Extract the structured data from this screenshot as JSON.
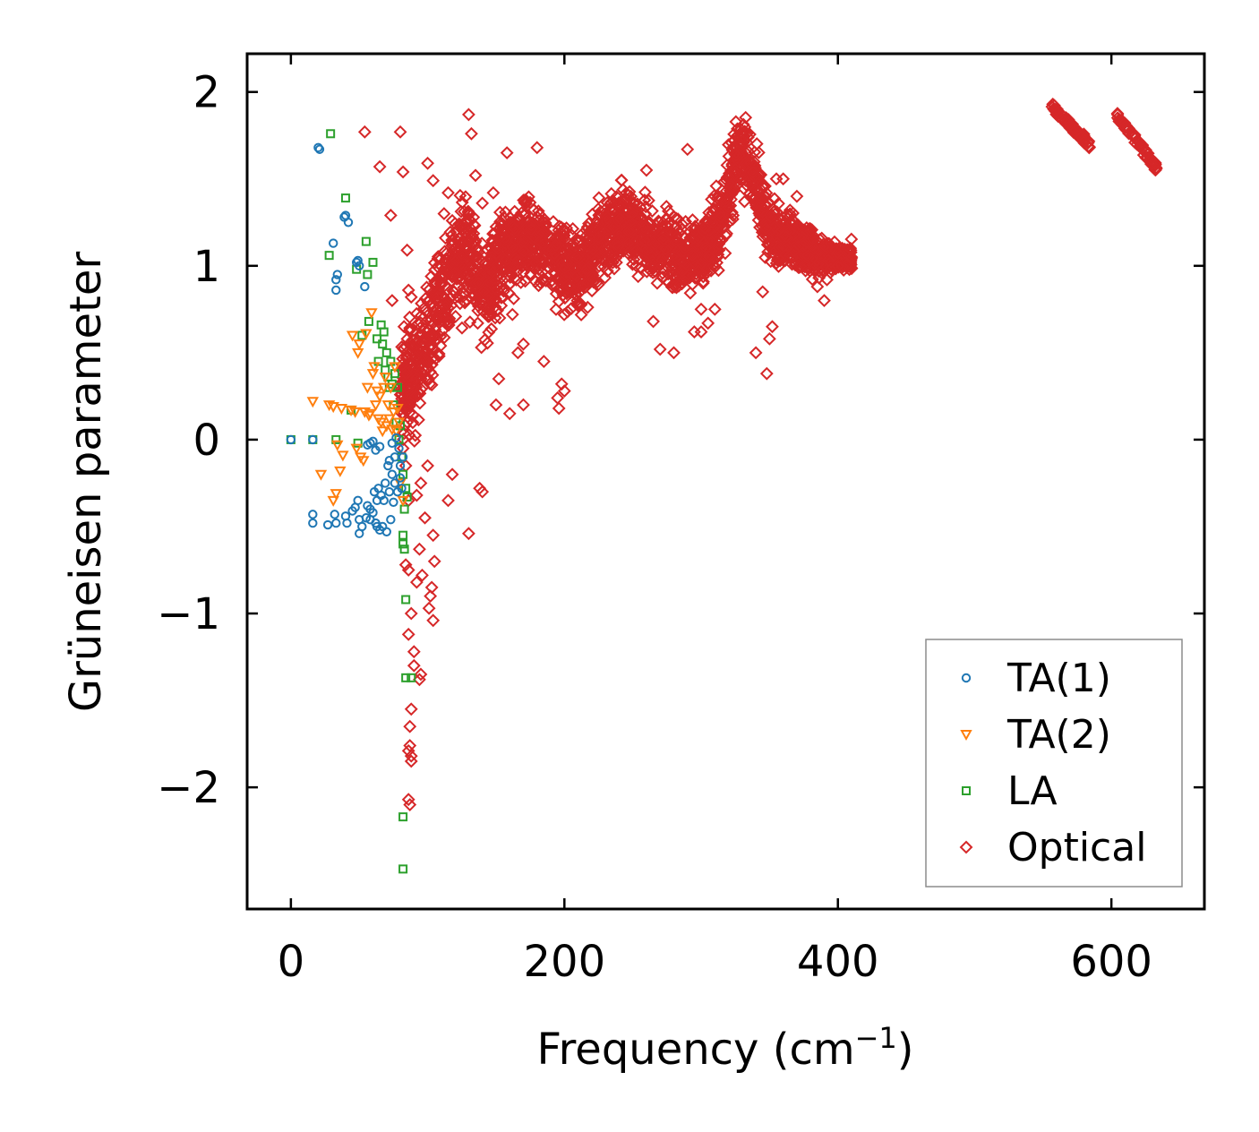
{
  "chart_data": {
    "type": "scatter",
    "title": "",
    "xlabel": "Frequency (cm",
    "xlabel_sup": "−1",
    "xlabel_tail": ")",
    "ylabel": "Grüneisen parameter",
    "xlim": [
      -32,
      668
    ],
    "ylim": [
      -2.7,
      2.22
    ],
    "x_ticks": [
      0,
      200,
      400,
      600
    ],
    "x_tick_labels": [
      "0",
      "200",
      "400",
      "600"
    ],
    "y_ticks": [
      -2,
      -1,
      0,
      1,
      2
    ],
    "y_tick_labels": [
      "−2",
      "−1",
      "0",
      "1",
      "2"
    ],
    "grid": false,
    "legend_position": "bottom-right",
    "series": [
      {
        "name": "TA(1)",
        "color": "#1f77b4",
        "marker": "circle",
        "points": [
          [
            0,
            0
          ],
          [
            16,
            0
          ],
          [
            16,
            -0.43
          ],
          [
            16,
            -0.48
          ],
          [
            20,
            1.68
          ],
          [
            21,
            1.67
          ],
          [
            27,
            -0.49
          ],
          [
            31,
            1.13
          ],
          [
            32,
            -0.43
          ],
          [
            33,
            0.86
          ],
          [
            33,
            0.92
          ],
          [
            34,
            0.95
          ],
          [
            33,
            -0.48
          ],
          [
            39,
            1.28
          ],
          [
            40,
            1.29
          ],
          [
            42,
            1.25
          ],
          [
            40,
            -0.44
          ],
          [
            41,
            -0.48
          ],
          [
            45,
            -0.41
          ],
          [
            47,
            -0.39
          ],
          [
            48,
            1.02
          ],
          [
            49,
            1.03
          ],
          [
            50,
            1.0
          ],
          [
            49,
            -0.35
          ],
          [
            50,
            -0.46
          ],
          [
            50,
            -0.54
          ],
          [
            52,
            -0.5
          ],
          [
            54,
            0.88
          ],
          [
            55,
            -0.45
          ],
          [
            56,
            -0.38
          ],
          [
            58,
            -0.4
          ],
          [
            58,
            -0.46
          ],
          [
            60,
            -0.42
          ],
          [
            61,
            -0.3
          ],
          [
            62,
            -0.48
          ],
          [
            63,
            -0.35
          ],
          [
            63,
            -0.5
          ],
          [
            64,
            -0.28
          ],
          [
            65,
            -0.52
          ],
          [
            66,
            -0.32
          ],
          [
            67,
            -0.5
          ],
          [
            68,
            -0.35
          ],
          [
            69,
            -0.25
          ],
          [
            70,
            -0.53
          ],
          [
            71,
            -0.15
          ],
          [
            72,
            -0.3
          ],
          [
            72,
            -0.12
          ],
          [
            73,
            -0.46
          ],
          [
            74,
            -0.2
          ],
          [
            74,
            -0.02
          ],
          [
            75,
            -0.36
          ],
          [
            76,
            -0.1
          ],
          [
            76,
            -0.25
          ],
          [
            77,
            0.01
          ],
          [
            78,
            -0.3
          ],
          [
            79,
            -0.05
          ],
          [
            80,
            -0.22
          ],
          [
            80,
            -0.15
          ],
          [
            81,
            -0.28
          ],
          [
            82,
            -0.1
          ],
          [
            56,
            -0.03
          ],
          [
            58,
            -0.02
          ],
          [
            60,
            -0.01
          ],
          [
            62,
            -0.06
          ],
          [
            65,
            -0.04
          ]
        ]
      },
      {
        "name": "TA(2)",
        "color": "#ff7f0e",
        "marker": "triangle",
        "points": [
          [
            16,
            0.22
          ],
          [
            22,
            -0.2
          ],
          [
            28,
            0.2
          ],
          [
            31,
            0.19
          ],
          [
            31,
            -0.35
          ],
          [
            33,
            -0.31
          ],
          [
            34,
            -0.03
          ],
          [
            36,
            -0.18
          ],
          [
            37,
            0.18
          ],
          [
            38,
            -0.09
          ],
          [
            44,
            0.17
          ],
          [
            45,
            0.6
          ],
          [
            47,
            0.16
          ],
          [
            48,
            -0.05
          ],
          [
            49,
            0.5
          ],
          [
            50,
            0.55
          ],
          [
            51,
            -0.1
          ],
          [
            53,
            -0.12
          ],
          [
            54,
            0.16
          ],
          [
            55,
            0.61
          ],
          [
            56,
            0.3
          ],
          [
            57,
            0.14
          ],
          [
            58,
            0.15
          ],
          [
            59,
            0.73
          ],
          [
            60,
            0.38
          ],
          [
            61,
            0.42
          ],
          [
            62,
            0.2
          ],
          [
            63,
            0.28
          ],
          [
            64,
            0.12
          ],
          [
            65,
            0.25
          ],
          [
            66,
            0.1
          ],
          [
            67,
            0.05
          ],
          [
            68,
            0.3
          ],
          [
            69,
            0.36
          ],
          [
            70,
            0.08
          ],
          [
            71,
            0.2
          ],
          [
            72,
            0.12
          ],
          [
            73,
            0.3
          ],
          [
            74,
            0.06
          ],
          [
            75,
            0.16
          ],
          [
            76,
            0.42
          ],
          [
            77,
            0.05
          ],
          [
            78,
            0.18
          ],
          [
            79,
            0.1
          ],
          [
            80,
            -0.25
          ],
          [
            82,
            -0.35
          ]
        ]
      },
      {
        "name": "LA",
        "color": "#2ca02c",
        "marker": "square",
        "points": [
          [
            0,
            0
          ],
          [
            16,
            0
          ],
          [
            29,
            1.76
          ],
          [
            28,
            1.06
          ],
          [
            33,
            0
          ],
          [
            40,
            1.39
          ],
          [
            44,
            0.17
          ],
          [
            48,
            0.98
          ],
          [
            49,
            -0.02
          ],
          [
            52,
            0.6
          ],
          [
            55,
            1.14
          ],
          [
            56,
            0.95
          ],
          [
            57,
            0.68
          ],
          [
            60,
            1.02
          ],
          [
            63,
            0.58
          ],
          [
            64,
            0.45
          ],
          [
            66,
            0.66
          ],
          [
            67,
            0.55
          ],
          [
            68,
            0.62
          ],
          [
            69,
            0.4
          ],
          [
            70,
            0.5
          ],
          [
            71,
            0.36
          ],
          [
            72,
            0.3
          ],
          [
            73,
            0.45
          ],
          [
            74,
            0.32
          ],
          [
            75,
            0.2
          ],
          [
            76,
            0.38
          ],
          [
            77,
            0.1
          ],
          [
            78,
            0.3
          ],
          [
            79,
            0.0
          ],
          [
            80,
            0.08
          ],
          [
            81,
            -0.1
          ],
          [
            82,
            -0.2
          ],
          [
            83,
            -0.4
          ],
          [
            84,
            -0.28
          ],
          [
            85,
            -0.33
          ],
          [
            82,
            -0.55
          ],
          [
            82,
            -0.6
          ],
          [
            83,
            -0.63
          ],
          [
            84,
            -0.92
          ],
          [
            84,
            -1.37
          ],
          [
            88,
            -1.37
          ],
          [
            82,
            -2.17
          ],
          [
            82,
            -2.47
          ]
        ]
      },
      {
        "name": "Optical",
        "color": "#d62728",
        "marker": "diamond",
        "points": []
      }
    ],
    "optical_band_center": [
      [
        80,
        0.3
      ],
      [
        88,
        0.35
      ],
      [
        95,
        0.45
      ],
      [
        102,
        0.65
      ],
      [
        110,
        0.8
      ],
      [
        118,
        0.95
      ],
      [
        126,
        1.05
      ],
      [
        134,
        1.0
      ],
      [
        142,
        0.85
      ],
      [
        150,
        0.98
      ],
      [
        158,
        1.08
      ],
      [
        166,
        1.12
      ],
      [
        175,
        1.15
      ],
      [
        185,
        1.1
      ],
      [
        195,
        1.05
      ],
      [
        205,
        0.95
      ],
      [
        215,
        0.98
      ],
      [
        225,
        1.15
      ],
      [
        235,
        1.2
      ],
      [
        245,
        1.25
      ],
      [
        255,
        1.2
      ],
      [
        265,
        1.1
      ],
      [
        275,
        1.1
      ],
      [
        285,
        1.05
      ],
      [
        295,
        1.05
      ],
      [
        305,
        1.15
      ],
      [
        315,
        1.25
      ],
      [
        322,
        1.5
      ],
      [
        328,
        1.65
      ],
      [
        334,
        1.6
      ],
      [
        340,
        1.45
      ],
      [
        348,
        1.25
      ],
      [
        356,
        1.15
      ],
      [
        365,
        1.15
      ],
      [
        375,
        1.1
      ],
      [
        385,
        1.05
      ],
      [
        395,
        1.05
      ],
      [
        405,
        1.05
      ]
    ],
    "optical_band_halfwidth": [
      [
        80,
        0.45
      ],
      [
        100,
        0.5
      ],
      [
        130,
        0.45
      ],
      [
        160,
        0.35
      ],
      [
        200,
        0.33
      ],
      [
        250,
        0.3
      ],
      [
        300,
        0.28
      ],
      [
        330,
        0.35
      ],
      [
        360,
        0.22
      ],
      [
        405,
        0.12
      ]
    ],
    "optical_segments": [
      {
        "x": [
          556,
          584
        ],
        "y": [
          1.92,
          1.7
        ]
      },
      {
        "x": [
          604,
          633
        ],
        "y": [
          1.87,
          1.56
        ]
      }
    ],
    "optical_outliers": [
      [
        54,
        1.77
      ],
      [
        65,
        1.57
      ],
      [
        73,
        1.29
      ],
      [
        74,
        0.8
      ],
      [
        80,
        1.77
      ],
      [
        82,
        1.54
      ],
      [
        85,
        1.09
      ],
      [
        86,
        0.86
      ],
      [
        88,
        0.82
      ],
      [
        100,
        1.59
      ],
      [
        104,
        1.49
      ],
      [
        107,
        0.82
      ],
      [
        112,
        1.3
      ],
      [
        115,
        1.42
      ],
      [
        118,
        1.26
      ],
      [
        125,
        1.07
      ],
      [
        130,
        1.87
      ],
      [
        132,
        1.76
      ],
      [
        135,
        1.52
      ],
      [
        140,
        1.36
      ],
      [
        148,
        1.42
      ],
      [
        158,
        1.65
      ],
      [
        162,
        0.72
      ],
      [
        166,
        0.5
      ],
      [
        170,
        0.55
      ],
      [
        180,
        1.68
      ],
      [
        185,
        0.45
      ],
      [
        195,
        0.24
      ],
      [
        196,
        0.18
      ],
      [
        198,
        0.32
      ],
      [
        200,
        0.28
      ],
      [
        130,
        -0.54
      ],
      [
        115,
        -0.35
      ],
      [
        118,
        -0.2
      ],
      [
        100,
        -0.15
      ],
      [
        95,
        -0.25
      ],
      [
        92,
        -0.32
      ],
      [
        98,
        -0.45
      ],
      [
        104,
        -0.55
      ],
      [
        102,
        -0.9
      ],
      [
        104,
        -1.04
      ],
      [
        101,
        -0.97
      ],
      [
        105,
        -0.7
      ],
      [
        103,
        -0.85
      ],
      [
        94,
        -0.63
      ],
      [
        96,
        -0.78
      ],
      [
        92,
        -0.82
      ],
      [
        86,
        -0.75
      ],
      [
        84,
        -0.72
      ],
      [
        88,
        -1.0
      ],
      [
        90,
        -1.22
      ],
      [
        90,
        -1.3
      ],
      [
        94,
        -1.38
      ],
      [
        95,
        -1.35
      ],
      [
        88,
        -1.55
      ],
      [
        87,
        -1.65
      ],
      [
        86,
        -1.12
      ],
      [
        86,
        -1.79
      ],
      [
        88,
        -1.82
      ],
      [
        87,
        -1.76
      ],
      [
        86,
        -2.07
      ],
      [
        87,
        -2.1
      ],
      [
        88,
        -1.85
      ],
      [
        82,
        -0.05
      ],
      [
        84,
        -0.15
      ],
      [
        85,
        0.1
      ],
      [
        86,
        -0.35
      ],
      [
        138,
        -0.28
      ],
      [
        140,
        -0.3
      ],
      [
        150,
        0.2
      ],
      [
        152,
        0.35
      ],
      [
        160,
        0.15
      ],
      [
        170,
        0.2
      ],
      [
        260,
        1.55
      ],
      [
        265,
        0.68
      ],
      [
        270,
        0.52
      ],
      [
        280,
        0.5
      ],
      [
        290,
        1.67
      ],
      [
        295,
        0.62
      ],
      [
        300,
        0.62
      ],
      [
        310,
        0.75
      ],
      [
        340,
        0.5
      ],
      [
        345,
        0.85
      ],
      [
        348,
        0.38
      ],
      [
        350,
        0.58
      ],
      [
        352,
        0.65
      ],
      [
        355,
        1.5
      ],
      [
        360,
        1.5
      ],
      [
        365,
        1.32
      ],
      [
        370,
        1.4
      ],
      [
        380,
        1.2
      ],
      [
        385,
        0.88
      ],
      [
        390,
        0.8
      ],
      [
        392,
        0.92
      ],
      [
        395,
        0.98
      ],
      [
        400,
        1.0
      ],
      [
        410,
        1.05
      ],
      [
        300,
        0.75
      ],
      [
        305,
        0.67
      ]
    ],
    "legend": [
      "TA(1)",
      "TA(2)",
      "LA",
      "Optical"
    ]
  }
}
